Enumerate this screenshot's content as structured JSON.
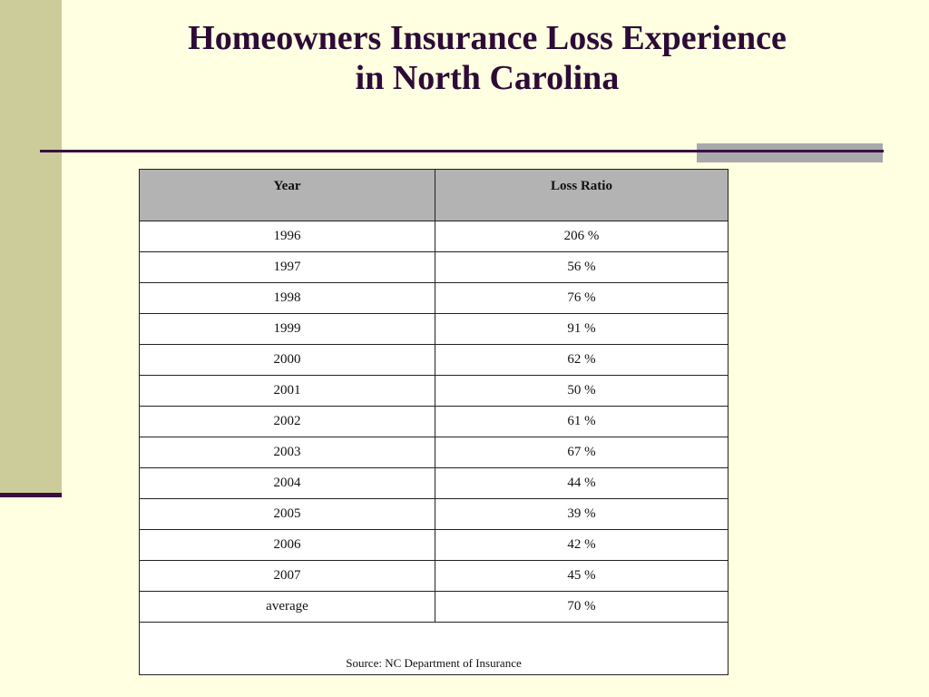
{
  "slide": {
    "title_line1": "Homeowners Insurance Loss Experience",
    "title_line2": "in North Carolina",
    "source": "Source: NC Department of Insurance",
    "colors": {
      "background": "#ffffe1",
      "title": "#2e0a37",
      "side_bar": "#cccc9a",
      "accent_line": "#3a0f3f",
      "header_fill": "#b3b3b3"
    }
  },
  "chart_data": {
    "type": "table",
    "columns": [
      "Year",
      "Loss Ratio"
    ],
    "rows": [
      [
        "1996",
        "206 %"
      ],
      [
        "1997",
        "56 %"
      ],
      [
        "1998",
        "76 %"
      ],
      [
        "1999",
        "91 %"
      ],
      [
        "2000",
        "62 %"
      ],
      [
        "2001",
        "50 %"
      ],
      [
        "2002",
        "61 %"
      ],
      [
        "2003",
        "67 %"
      ],
      [
        "2004",
        "44 %"
      ],
      [
        "2005",
        "39 %"
      ],
      [
        "2006",
        "42 %"
      ],
      [
        "2007",
        "45 %"
      ],
      [
        "average",
        "70 %"
      ]
    ],
    "title": "Homeowners Insurance Loss Experience in North Carolina"
  }
}
